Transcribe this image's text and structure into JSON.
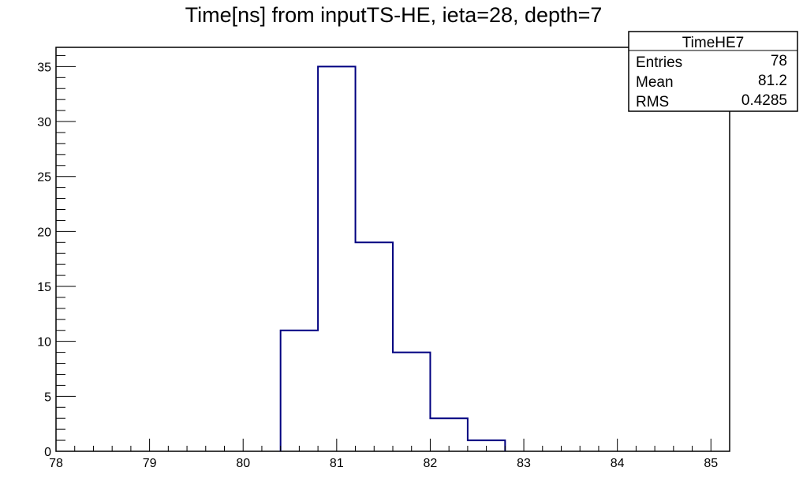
{
  "chart_data": {
    "type": "histogram",
    "title": "Time[ns] from inputTS-HE, ieta=28, depth=7",
    "xlabel": "",
    "ylabel": "",
    "xlim": [
      78,
      85.2
    ],
    "ylim": [
      0,
      36.75
    ],
    "bin_edges": [
      80.4,
      80.8,
      81.2,
      81.6,
      82.0,
      82.4,
      82.8
    ],
    "counts": [
      11,
      35,
      19,
      9,
      3,
      1
    ],
    "x_ticks": [
      "78",
      "79",
      "80",
      "81",
      "82",
      "83",
      "84",
      "85"
    ],
    "y_ticks": [
      "0",
      "5",
      "10",
      "15",
      "20",
      "25",
      "30",
      "35"
    ],
    "line_color": "#000080",
    "grid": false,
    "legend": "none",
    "stats_box": {
      "name": "TimeHE7",
      "placement": "top-right",
      "rows": [
        {
          "label": "Entries",
          "value": "78"
        },
        {
          "label": "Mean",
          "value": "81.2"
        },
        {
          "label": "RMS",
          "value": "0.4285"
        }
      ]
    }
  }
}
